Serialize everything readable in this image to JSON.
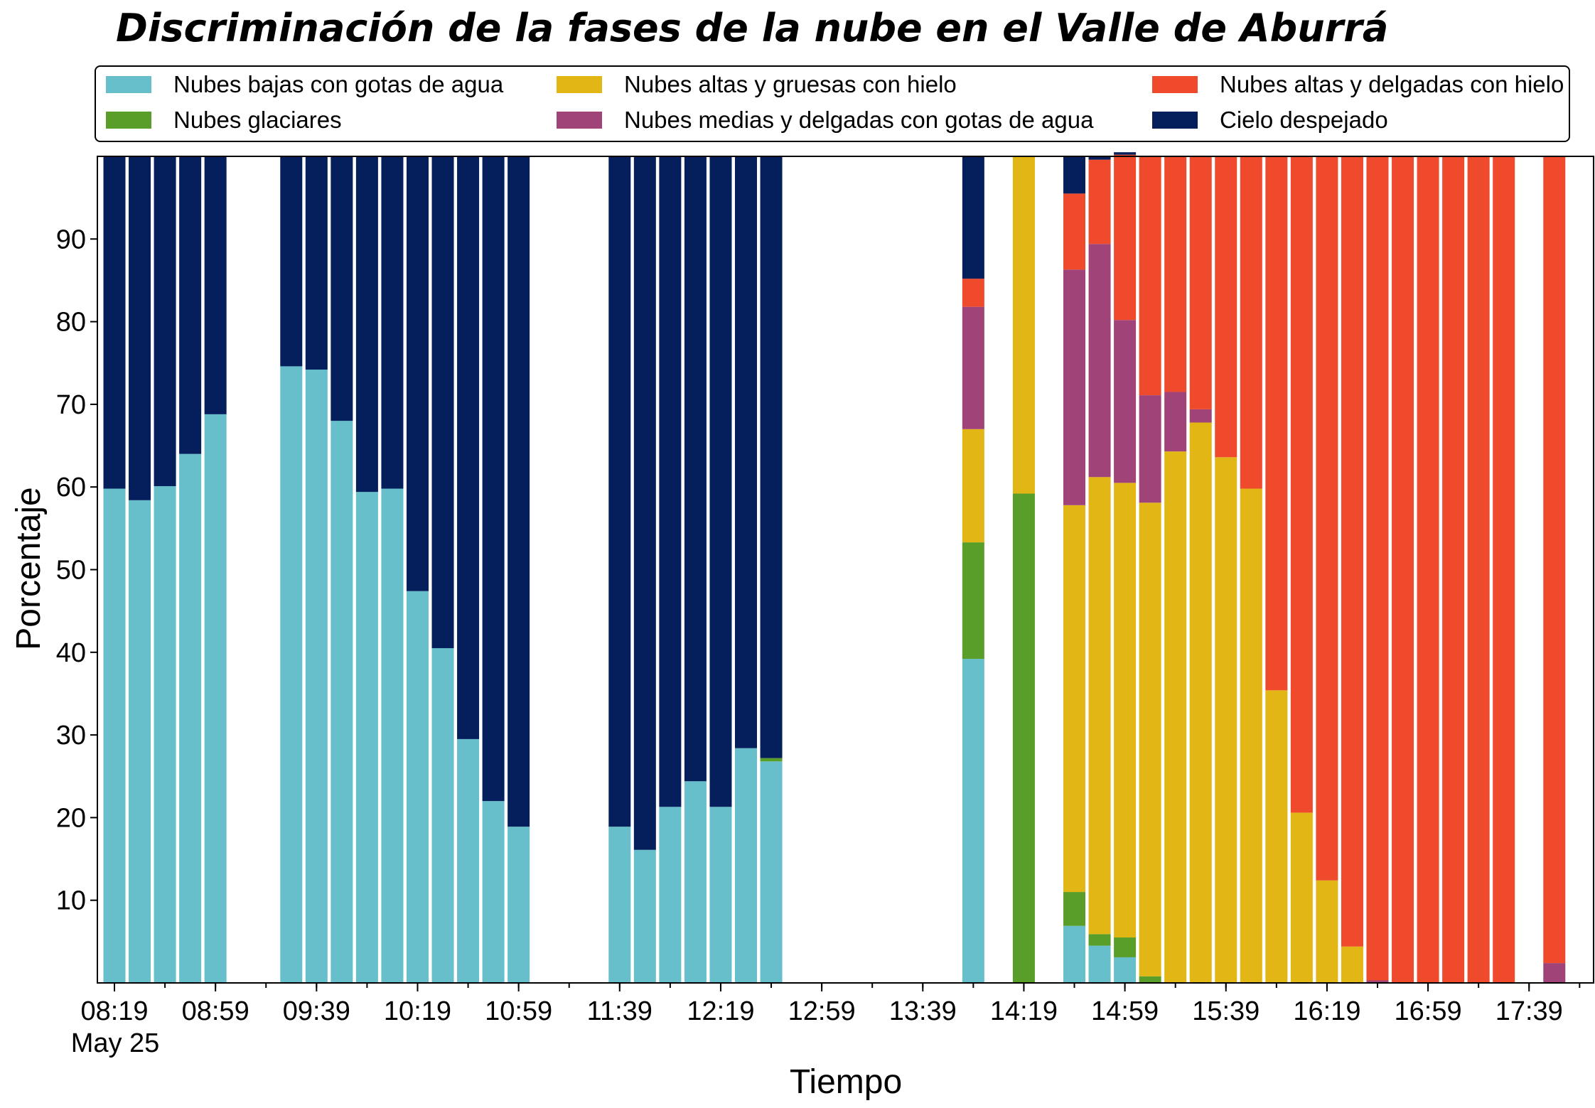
{
  "chart_data": {
    "type": "bar",
    "stacked": true,
    "title": "Discriminación de la fases de la nube en el Valle de Aburrá",
    "xlabel": "Tiempo",
    "ylabel": "Porcentaje",
    "ylim": [
      0,
      100
    ],
    "yticks": [
      10,
      20,
      30,
      40,
      50,
      60,
      70,
      80,
      90
    ],
    "x_tick_labels": [
      "08:19",
      "08:59",
      "09:39",
      "10:19",
      "10:59",
      "11:39",
      "12:19",
      "12:59",
      "13:39",
      "14:19",
      "14:59",
      "15:39",
      "16:19",
      "16:59",
      "17:39"
    ],
    "x_date_label": "May 25",
    "x_start_time": "08:19",
    "x_end_time": "17:49",
    "interval_minutes": 10,
    "legend_position": "top",
    "grid": false,
    "categories": [
      "08:19",
      "08:29",
      "08:39",
      "08:49",
      "08:59",
      "09:09",
      "09:19",
      "09:29",
      "09:39",
      "09:49",
      "09:59",
      "10:09",
      "10:19",
      "10:29",
      "10:39",
      "10:49",
      "10:59",
      "11:09",
      "11:19",
      "11:29",
      "11:39",
      "11:49",
      "11:59",
      "12:09",
      "12:19",
      "12:29",
      "12:39",
      "12:49",
      "12:59",
      "13:09",
      "13:19",
      "13:29",
      "13:39",
      "13:49",
      "13:59",
      "14:09",
      "14:19",
      "14:29",
      "14:39",
      "14:49",
      "14:59",
      "15:09",
      "15:19",
      "15:29",
      "15:39",
      "15:49",
      "15:59",
      "16:09",
      "16:19",
      "16:29",
      "16:39",
      "16:49",
      "16:59",
      "17:09",
      "17:19",
      "17:29",
      "17:39",
      "17:49"
    ],
    "series": [
      {
        "name": "Nubes bajas con gotas de agua",
        "color": "#67bfcb",
        "values": [
          59.8,
          58.4,
          60.1,
          64,
          68.8,
          0,
          0,
          74.6,
          74.2,
          68,
          59.4,
          59.8,
          47.4,
          40.5,
          29.5,
          22,
          18.9,
          0,
          0,
          0,
          18.9,
          16.1,
          21.3,
          24.4,
          21.3,
          28.4,
          26.8,
          0,
          0,
          0,
          0,
          0,
          0,
          0,
          39.2,
          0,
          0,
          0,
          6.9,
          4.5,
          3.1,
          0,
          0,
          0,
          0,
          0,
          0,
          0,
          0,
          0,
          0,
          0,
          0,
          0,
          0,
          0,
          0,
          0
        ]
      },
      {
        "name": "Nubes glaciares",
        "color": "#5a9e2a",
        "values": [
          0,
          0,
          0,
          0,
          0,
          0,
          0,
          0,
          0,
          0,
          0,
          0,
          0,
          0,
          0,
          0,
          0,
          0,
          0,
          0,
          0,
          0,
          0,
          0,
          0,
          0,
          0.4,
          0,
          0,
          0,
          0,
          0,
          0,
          0,
          14.1,
          0,
          59.2,
          0,
          4.1,
          1.4,
          2.4,
          0.8,
          0,
          0,
          0,
          0,
          0,
          0,
          0,
          0,
          0,
          0,
          0,
          0,
          0,
          0,
          0,
          0
        ]
      },
      {
        "name": "Nubes altas y gruesas con hielo",
        "color": "#e2b615",
        "values": [
          0,
          0,
          0,
          0,
          0,
          0,
          0,
          0,
          0,
          0,
          0,
          0,
          0,
          0,
          0,
          0,
          0,
          0,
          0,
          0,
          0,
          0,
          0,
          0,
          0,
          0,
          0,
          0,
          0,
          0,
          0,
          0,
          0,
          0,
          13.7,
          0,
          40.8,
          0,
          46.8,
          55.3,
          55,
          57.3,
          64.3,
          67.8,
          63.6,
          59.8,
          35.4,
          20.6,
          12.4,
          4.4,
          0,
          0,
          0,
          0,
          0,
          0,
          0,
          0
        ]
      },
      {
        "name": "Nubes medias y delgadas con gotas de agua",
        "color": "#a04378",
        "values": [
          0,
          0,
          0,
          0,
          0,
          0,
          0,
          0,
          0,
          0,
          0,
          0,
          0,
          0,
          0,
          0,
          0,
          0,
          0,
          0,
          0,
          0,
          0,
          0,
          0,
          0,
          0,
          0,
          0,
          0,
          0,
          0,
          0,
          0,
          14.8,
          0,
          0,
          0,
          28.5,
          28.2,
          19.7,
          13,
          7.2,
          1.6,
          0,
          0,
          0,
          0,
          0,
          0,
          0.3,
          0,
          0,
          0,
          0,
          0,
          0,
          2.4
        ]
      },
      {
        "name": "Nubes altas y delgadas con hielo",
        "color": "#ee4a2b",
        "values": [
          0,
          0,
          0,
          0,
          0,
          0,
          0,
          0,
          0,
          0,
          0,
          0,
          0,
          0,
          0,
          0,
          0,
          0,
          0,
          0,
          0,
          0,
          0,
          0,
          0,
          0,
          0,
          0,
          0,
          0,
          0,
          0,
          0,
          0,
          3.4,
          0,
          0,
          0,
          9.2,
          10.2,
          20,
          28.9,
          28.5,
          30.6,
          36.4,
          40.2,
          64.6,
          79.4,
          87.6,
          95.6,
          99.7,
          100,
          100,
          100,
          100,
          100,
          0,
          97.6
        ]
      },
      {
        "name": "Cielo despejado",
        "color": "#041f5c",
        "values": [
          40.2,
          41.6,
          39.9,
          36,
          31.2,
          0,
          0,
          25.4,
          25.8,
          32,
          40.6,
          40.2,
          52.6,
          59.5,
          70.5,
          78,
          81.1,
          0,
          0,
          0,
          81.1,
          83.9,
          78.7,
          75.6,
          78.7,
          71.6,
          72.8,
          0,
          0,
          0,
          0,
          0,
          0,
          0,
          14.8,
          0,
          0,
          0,
          4.5,
          0.4,
          0.3,
          0,
          0,
          0,
          0,
          0,
          0,
          0,
          0,
          0,
          0,
          0,
          0,
          0,
          0,
          0,
          0,
          0
        ]
      }
    ]
  }
}
